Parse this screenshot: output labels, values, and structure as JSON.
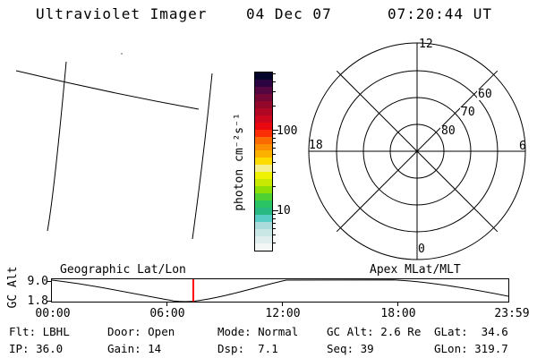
{
  "header": {
    "title": "Ultraviolet Imager",
    "date": "04 Dec 07",
    "time": "07:20:44 UT"
  },
  "colorbar": {
    "label": "photon cm⁻²s⁻¹",
    "tick_100": "100",
    "tick_10": "10",
    "scale": "log",
    "colors": [
      "#05052c",
      "#2b0340",
      "#540640",
      "#740734",
      "#93072b",
      "#b00724",
      "#cd071d",
      "#e90710",
      "#fa2d04",
      "#fb6b02",
      "#fc8f01",
      "#fcb101",
      "#fcdc01",
      "#f5ef8e",
      "#eff203",
      "#c8e902",
      "#8edf05",
      "#4ed132",
      "#2bc465",
      "#28b983",
      "#57cdc6",
      "#abdcdb",
      "#c9e7e5",
      "#e0efee",
      "#f3f8f7"
    ]
  },
  "geographic_panel": {
    "caption": "Geographic Lat/Lon"
  },
  "polar_plot": {
    "caption": "Apex MLat/MLT",
    "mlt_top": "12",
    "mlt_right": "6",
    "mlt_left": "18",
    "mlt_bottom": "0",
    "lat_60": "60",
    "lat_70": "70",
    "lat_80": "80",
    "rings_lat": [
      80,
      70,
      60,
      50
    ]
  },
  "orbit_plot": {
    "ylabel": "GC Alt",
    "y_tick_top": "9.0",
    "y_tick_bottom": "1.8",
    "x_ticks": [
      "00:00",
      "06:00",
      "12:00",
      "18:00",
      "23:59"
    ],
    "cursor_color": "#ff0000",
    "cursor_time_hours": 7.35
  },
  "status": {
    "flt": "Flt: LBHL",
    "ip": "IP: 36.0",
    "door": "Door: Open",
    "gain": "Gain: 14",
    "mode": "Mode: Normal",
    "dsp": "Dsp:  7.1",
    "gc_alt": "GC Alt: 2.6 Re",
    "seq": "Seq: 39",
    "glat": "GLat:  34.6",
    "glon": "GLon: 319.7"
  }
}
